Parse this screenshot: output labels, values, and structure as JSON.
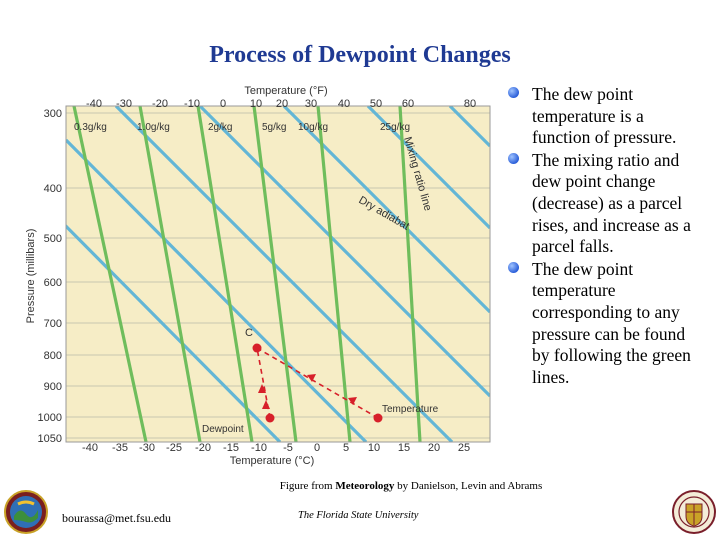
{
  "slide": {
    "title": "Process of Dewpoint Changes",
    "bullets": [
      "The dew point temperature is a function of pressure.",
      "The mixing ratio and dew point change (decrease) as a parcel rises, and increase as a parcel falls.",
      "The dew point temperature corresponding to any pressure can be found by following the green lines."
    ],
    "caption_prefix": "Figure from ",
    "caption_book": "Meteorology",
    "caption_suffix": " by Danielson, Levin and Abrams",
    "footer_email": "bourassa@met.fsu.edu",
    "footer_university": "The Florida State University"
  },
  "diagram": {
    "top_axis_title": "Temperature (°F)",
    "bottom_axis_title": "Temperature (°C)",
    "y_axis_title": "Pressure (millibars)",
    "pressure_ticks": [
      "300",
      "400",
      "500",
      "600",
      "700",
      "800",
      "900",
      "1000",
      "1050"
    ],
    "fahrenheit_ticks": [
      "-40",
      "-30",
      "-20",
      "-10",
      "0",
      "10",
      "20",
      "30",
      "40",
      "50",
      "60",
      "80"
    ],
    "celsius_ticks": [
      "-40",
      "-35",
      "-30",
      "-25",
      "-20",
      "-15",
      "-10",
      "-5",
      "0",
      "5",
      "10",
      "15",
      "20",
      "25"
    ],
    "mixing_ratio_labels": [
      "0.3g/kg",
      "1.0g/kg",
      "2g/kg",
      "5g/kg",
      "10g/kg",
      "25g/kg"
    ],
    "mixing_ratio_line_label": "Mixing ratio line",
    "dry_adiabat_label": "Dry adiabat",
    "point_c_label": "C",
    "dewpoint_label": "Dewpoint",
    "temperature_label": "Temperature",
    "colors": {
      "background": "#f6edc6",
      "isobar": "#8fc9dd",
      "dry_adiabat": "#63b6d6",
      "mixing_ratio": "#6fbd5c",
      "path": "#d7202a",
      "title": "#1f3a93"
    }
  }
}
